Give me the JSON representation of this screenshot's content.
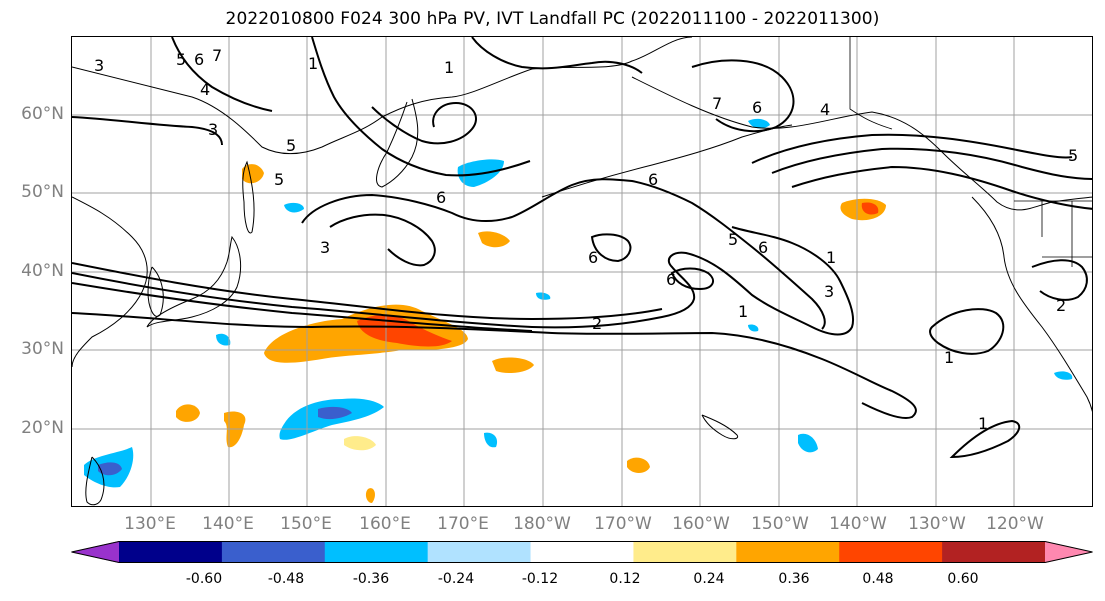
{
  "title": "2022010800 F024 300 hPa PV, IVT Landfall PC (2022011100 - 2022011300)",
  "lat_labels": [
    "60°N",
    "50°N",
    "40°N",
    "30°N",
    "20°N"
  ],
  "lon_labels": [
    "130°E",
    "140°E",
    "150°E",
    "160°E",
    "170°E",
    "180°W",
    "170°W",
    "160°W",
    "150°W",
    "140°W",
    "130°W",
    "120°W"
  ],
  "colorbar": {
    "labels": [
      "-0.60",
      "-0.48",
      "-0.36",
      "-0.24",
      "-0.12",
      "0.12",
      "0.24",
      "0.36",
      "0.48",
      "0.60"
    ],
    "colors": [
      "#9932cc",
      "#00008b",
      "#3a5fcd",
      "#00bfff",
      "#b0e2ff",
      "#ffffff",
      "#ffec8b",
      "#ffa500",
      "#ff4500",
      "#b22222",
      "#ff88b0"
    ]
  },
  "contour_labels": [
    "1",
    "2",
    "3",
    "4",
    "5",
    "6",
    "7"
  ],
  "contour_tags": {
    "a": "3",
    "b": "5",
    "c": "6",
    "d": "7",
    "e": "1",
    "f": "4",
    "g": "3",
    "h": "5",
    "i": "5",
    "j": "6",
    "k": "6",
    "l": "3",
    "m": "6",
    "n": "6",
    "o": "5",
    "p": "6",
    "q": "1",
    "r": "3",
    "s": "1",
    "t": "2",
    "u": "1",
    "v": "1",
    "w": "7",
    "x": "6",
    "y": "4",
    "z": "5",
    "aa": "2",
    "ab": "1"
  }
}
